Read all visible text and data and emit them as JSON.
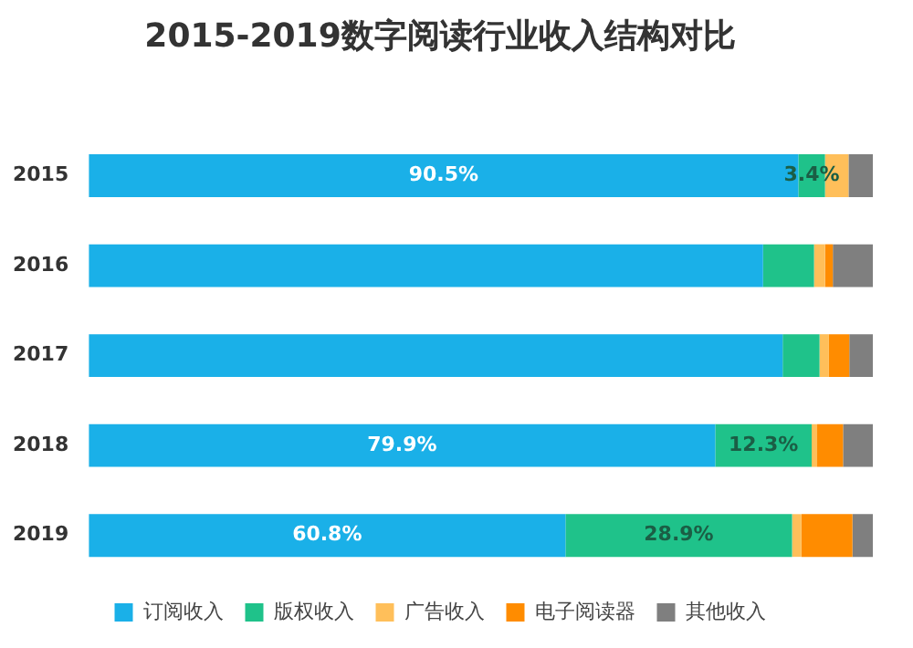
{
  "chart_data": {
    "type": "bar",
    "orientation": "horizontal",
    "stacked": true,
    "title": "2015-2019数字阅读行业收入结构对比",
    "categories": [
      "2015",
      "2016",
      "2017",
      "2018",
      "2019"
    ],
    "xlim": [
      0,
      100
    ],
    "tick_labels": "y",
    "grid": false,
    "legend": "bottom",
    "series": [
      {
        "name": "订阅收入",
        "color": "#1ab0e8",
        "values": [
          90.5,
          86,
          88.5,
          79.9,
          60.8
        ],
        "value_labels": [
          "90.5%",
          null,
          null,
          "79.9%",
          "60.8%"
        ]
      },
      {
        "name": "版权收入",
        "color": "#1fc28a",
        "values": [
          3.4,
          6.5,
          4.7,
          12.3,
          28.9
        ],
        "value_labels": [
          "3.4%",
          null,
          null,
          "12.3%",
          "28.9%"
        ]
      },
      {
        "name": "广告收入",
        "color": "#ffbf5a",
        "values": [
          3.0,
          1.4,
          1.2,
          0.7,
          1.2
        ]
      },
      {
        "name": "电子阅读器",
        "color": "#ff8c00",
        "values": [
          0,
          1.0,
          2.6,
          3.3,
          6.5
        ]
      },
      {
        "name": "其他收入",
        "color": "#7f7f7f",
        "values": [
          3.1,
          5.1,
          3.0,
          3.8,
          2.6
        ]
      }
    ]
  }
}
